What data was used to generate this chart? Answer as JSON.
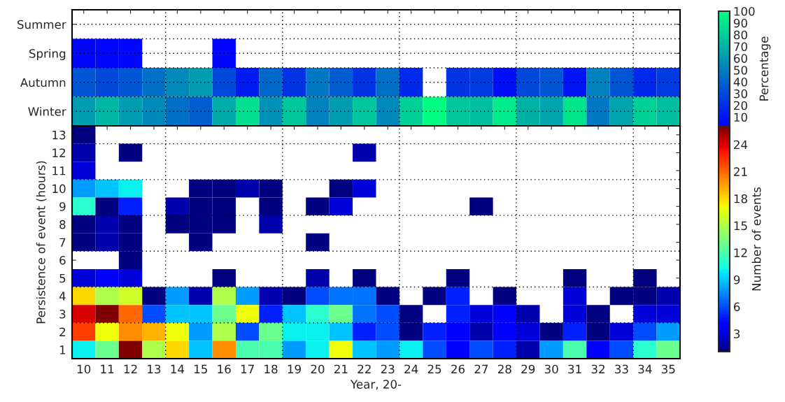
{
  "chart_data": [
    {
      "type": "heatmap",
      "categories": [
        "10",
        "11",
        "12",
        "13",
        "14",
        "15",
        "16",
        "17",
        "18",
        "19",
        "20",
        "21",
        "22",
        "23",
        "24",
        "25",
        "26",
        "27",
        "28",
        "29",
        "30",
        "31",
        "32",
        "33",
        "34",
        "35"
      ],
      "y_categories": [
        "Summer",
        "Spring",
        "Autumn",
        "Winter"
      ],
      "cells": [
        [
          null,
          null,
          null,
          null,
          null,
          null,
          null,
          null,
          null,
          null,
          null,
          null,
          null,
          null,
          null,
          null,
          null,
          null,
          null,
          null,
          null,
          null,
          null,
          null,
          null,
          null
        ],
        [
          5,
          5,
          5,
          null,
          null,
          null,
          5,
          null,
          null,
          null,
          null,
          null,
          null,
          null,
          null,
          null,
          null,
          null,
          null,
          null,
          null,
          null,
          null,
          null,
          null,
          null
        ],
        [
          35,
          30,
          35,
          45,
          55,
          62,
          30,
          12,
          42,
          22,
          48,
          38,
          22,
          45,
          18,
          null,
          22,
          25,
          8,
          30,
          35,
          10,
          52,
          35,
          18,
          25
        ],
        [
          62,
          72,
          62,
          55,
          45,
          38,
          68,
          88,
          58,
          78,
          52,
          62,
          78,
          55,
          82,
          100,
          78,
          75,
          92,
          70,
          65,
          90,
          48,
          65,
          82,
          75
        ]
      ],
      "tick_labels": "y",
      "grid": true,
      "clabel": "Percentage",
      "clim": [
        2,
        100
      ],
      "cticks": [
        10,
        20,
        30,
        40,
        50,
        60,
        70,
        80,
        90,
        100
      ]
    },
    {
      "type": "heatmap",
      "categories": [
        "10",
        "11",
        "12",
        "13",
        "14",
        "15",
        "16",
        "17",
        "18",
        "19",
        "20",
        "21",
        "22",
        "23",
        "24",
        "25",
        "26",
        "27",
        "28",
        "29",
        "30",
        "31",
        "32",
        "33",
        "34",
        "35"
      ],
      "y_categories": [
        "13",
        "12",
        "11",
        "10",
        "9",
        "8",
        "7",
        "6",
        "5",
        "4",
        "3",
        "2",
        "1"
      ],
      "cells": [
        [
          1,
          null,
          null,
          null,
          null,
          null,
          null,
          null,
          null,
          null,
          null,
          null,
          null,
          null,
          null,
          null,
          null,
          null,
          null,
          null,
          null,
          null,
          null,
          null,
          null,
          null
        ],
        [
          2,
          null,
          1,
          null,
          null,
          null,
          null,
          null,
          null,
          null,
          null,
          null,
          2,
          null,
          null,
          null,
          null,
          null,
          null,
          null,
          null,
          null,
          null,
          null,
          null,
          null
        ],
        [
          3,
          null,
          null,
          null,
          null,
          null,
          null,
          null,
          null,
          null,
          null,
          null,
          null,
          null,
          null,
          null,
          null,
          null,
          null,
          null,
          null,
          null,
          null,
          null,
          null,
          null
        ],
        [
          8,
          9,
          10,
          null,
          null,
          1,
          1,
          2,
          1,
          null,
          null,
          1,
          3,
          null,
          null,
          null,
          null,
          null,
          null,
          null,
          null,
          null,
          null,
          null,
          null,
          null
        ],
        [
          11,
          1,
          5,
          null,
          2,
          1,
          1,
          null,
          1,
          null,
          1,
          3,
          null,
          null,
          null,
          null,
          null,
          1,
          null,
          null,
          null,
          null,
          null,
          null,
          null,
          null
        ],
        [
          1,
          2,
          1,
          null,
          1,
          1,
          1,
          null,
          2,
          null,
          null,
          null,
          null,
          null,
          null,
          null,
          null,
          null,
          null,
          null,
          null,
          null,
          null,
          null,
          null,
          null
        ],
        [
          1,
          2,
          1,
          null,
          null,
          1,
          null,
          null,
          null,
          null,
          1,
          null,
          null,
          null,
          null,
          null,
          null,
          null,
          null,
          null,
          null,
          null,
          null,
          null,
          null,
          null
        ],
        [
          null,
          null,
          1,
          null,
          null,
          null,
          null,
          null,
          null,
          null,
          null,
          null,
          null,
          null,
          null,
          null,
          null,
          null,
          null,
          null,
          null,
          null,
          null,
          null,
          null,
          null
        ],
        [
          3,
          4,
          3,
          null,
          null,
          null,
          1,
          null,
          null,
          null,
          2,
          null,
          1,
          null,
          null,
          null,
          1,
          null,
          null,
          null,
          null,
          1,
          null,
          null,
          1,
          null
        ],
        [
          18,
          15,
          16,
          1,
          8,
          2,
          15,
          8,
          2,
          1,
          6,
          7,
          7,
          1,
          null,
          1,
          5,
          null,
          1,
          null,
          null,
          3,
          null,
          1,
          1,
          2
        ],
        [
          24,
          26,
          21,
          6,
          9,
          9,
          13,
          17,
          5,
          9,
          11,
          13,
          7,
          6,
          1,
          null,
          5,
          3,
          4,
          2,
          null,
          3,
          1,
          null,
          3,
          3
        ],
        [
          22,
          17,
          20,
          19,
          17,
          8,
          15,
          6,
          13,
          10,
          10,
          9,
          5,
          6,
          1,
          5,
          4,
          2,
          4,
          3,
          1,
          5,
          1,
          3,
          6,
          8
        ],
        [
          10,
          13,
          26,
          15,
          18,
          9,
          20,
          12,
          12,
          8,
          10,
          17,
          9,
          8,
          10,
          6,
          4,
          6,
          5,
          2,
          8,
          12,
          4,
          6,
          11,
          13
        ]
      ],
      "grid": true,
      "xlabel": "Year, 20-",
      "ylabel": "Persistence of event (hours)",
      "clabel": "Number of events",
      "clim": [
        1,
        26
      ],
      "cticks": [
        3,
        6,
        9,
        12,
        15,
        18,
        21,
        24
      ]
    }
  ]
}
